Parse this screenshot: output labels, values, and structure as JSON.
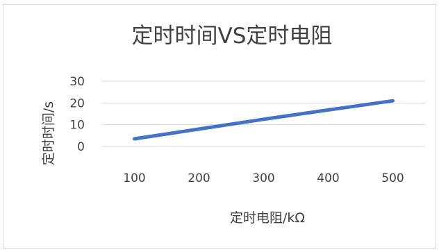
{
  "chart_data": {
    "type": "line",
    "title": "定时时间VS定时电阻",
    "xlabel": "定时电阻/kΩ",
    "ylabel": "定时时间/s",
    "categories": [
      "100",
      "200",
      "300",
      "400",
      "500"
    ],
    "series": [
      {
        "values": [
          3.5,
          8,
          12.5,
          16.8,
          21
        ]
      }
    ],
    "yticks": [
      "0",
      "10",
      "20",
      "30"
    ],
    "ylim": [
      0,
      30
    ],
    "grid": true,
    "legend": "none",
    "colors": {
      "line": "#4472C4",
      "grid": "#D9D9D9",
      "text": "#404040"
    }
  }
}
